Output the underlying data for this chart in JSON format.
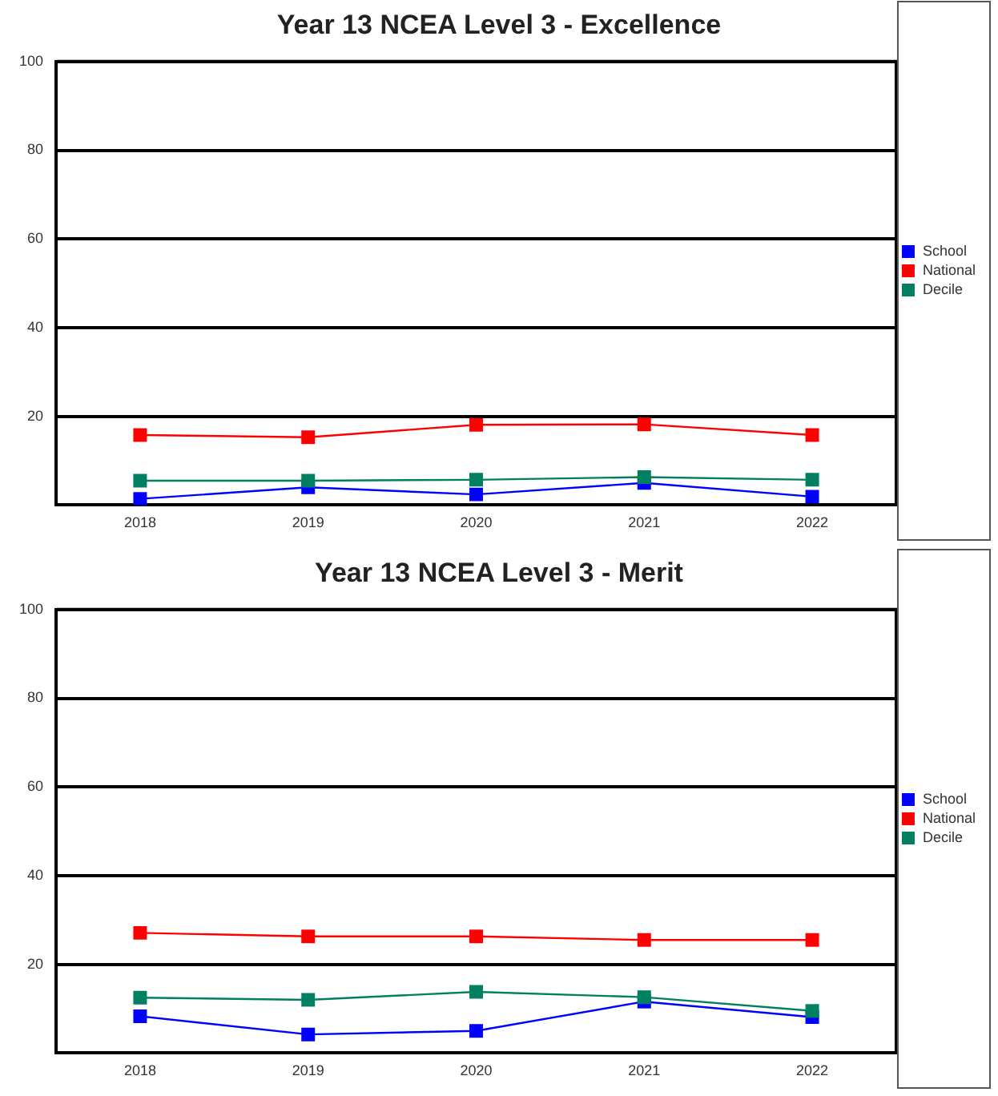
{
  "chart_data": [
    {
      "type": "line",
      "title": "Year 13 NCEA Level 3 - Excellence",
      "categories": [
        "2018",
        "2019",
        "2020",
        "2021",
        "2022"
      ],
      "series": [
        {
          "name": "School",
          "color": "#0000ff",
          "values": [
            1.4,
            4.0,
            2.4,
            5.0,
            1.9
          ]
        },
        {
          "name": "National",
          "color": "#ff0000",
          "values": [
            15.8,
            15.3,
            18.1,
            18.2,
            15.8
          ]
        },
        {
          "name": "Decile",
          "color": "#008060",
          "values": [
            5.5,
            5.5,
            5.7,
            6.3,
            5.7
          ]
        }
      ],
      "ylim": [
        0,
        100
      ],
      "yticks": [
        {
          "value": 0,
          "label": null
        },
        20,
        40,
        60,
        80,
        100
      ],
      "grid": "y",
      "legend": "right",
      "marker": "square",
      "line_style": "solid"
    },
    {
      "type": "line",
      "title": "Year 13 NCEA Level 3 - Merit",
      "categories": [
        "2018",
        "2019",
        "2020",
        "2021",
        "2022"
      ],
      "series": [
        {
          "name": "School",
          "color": "#0000ff",
          "values": [
            8.3,
            4.2,
            5.0,
            11.6,
            8.1
          ]
        },
        {
          "name": "National",
          "color": "#ff0000",
          "values": [
            27.1,
            26.3,
            26.3,
            25.5,
            25.5
          ]
        },
        {
          "name": "Decile",
          "color": "#008060",
          "values": [
            12.5,
            12.0,
            13.8,
            12.6,
            9.5
          ]
        }
      ],
      "ylim": [
        0,
        100
      ],
      "yticks": [
        {
          "value": 0,
          "label": null
        },
        20,
        40,
        60,
        80,
        100
      ],
      "grid": "y",
      "legend": "right",
      "marker": "square",
      "line_style": "solid"
    }
  ]
}
